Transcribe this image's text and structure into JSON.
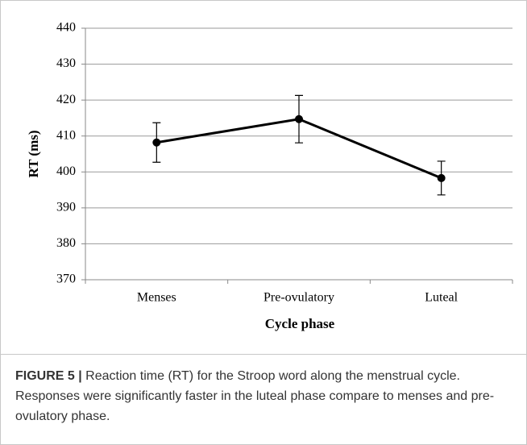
{
  "chart_data": {
    "type": "line",
    "x_label": "Cycle phase",
    "y_label": "RT (ms)",
    "categories": [
      "Menses",
      "Pre-ovulatory",
      "Luteal"
    ],
    "series": [
      {
        "name": "RT",
        "color": "#000000",
        "values": [
          408.2,
          414.7,
          398.3
        ],
        "errors": [
          5.5,
          6.6,
          4.7
        ]
      }
    ],
    "ylim": [
      370,
      440
    ],
    "yticks": [
      370,
      380,
      390,
      400,
      410,
      420,
      430,
      440
    ],
    "grid": true
  },
  "caption": {
    "label": "FIGURE 5 |",
    "text": "Reaction time (RT) for the Stroop word along the menstrual cycle. Responses were significantly faster in the luteal phase compare to menses and pre-ovulatory phase."
  }
}
